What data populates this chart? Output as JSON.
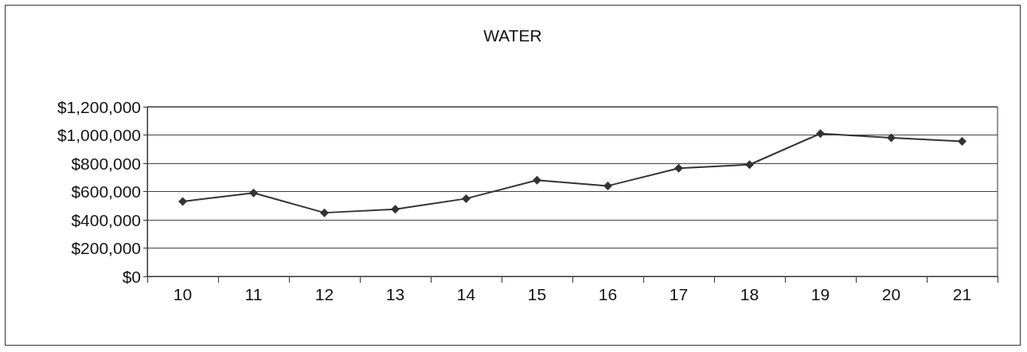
{
  "chart_data": {
    "type": "line",
    "title": "WATER",
    "categories": [
      "10",
      "11",
      "12",
      "13",
      "14",
      "15",
      "16",
      "17",
      "18",
      "19",
      "20",
      "21"
    ],
    "series": [
      {
        "color": "#333333",
        "values": [
          530000,
          590000,
          450000,
          475000,
          550000,
          680000,
          640000,
          765000,
          790000,
          1010000,
          980000,
          955000
        ]
      }
    ],
    "ylim": [
      0,
      1200000
    ],
    "yticks": [
      {
        "value": 0,
        "label": "$0"
      },
      {
        "value": 200000,
        "label": "$200,000"
      },
      {
        "value": 400000,
        "label": "$400,000"
      },
      {
        "value": 600000,
        "label": "$600,000"
      },
      {
        "value": 800000,
        "label": "$800,000"
      },
      {
        "value": 1000000,
        "label": "$1,000,000"
      },
      {
        "value": 1200000,
        "label": "$1,200,000"
      }
    ],
    "grid": "y",
    "marker": "diamond",
    "line_style": "solid"
  }
}
